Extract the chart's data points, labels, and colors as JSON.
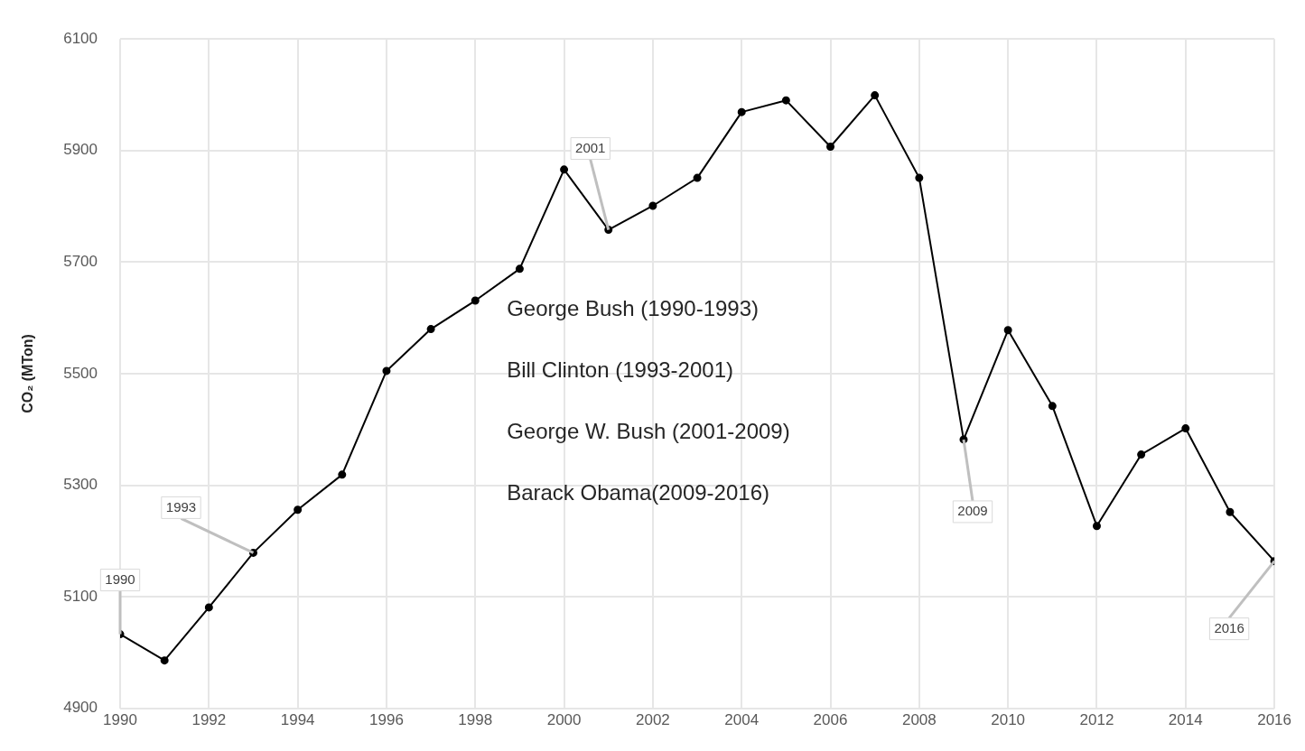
{
  "chart_data": {
    "type": "line",
    "ylabel": "CO₂ (MTon)",
    "x": [
      1990,
      1991,
      1992,
      1993,
      1994,
      1995,
      1996,
      1997,
      1998,
      1999,
      2000,
      2001,
      2002,
      2003,
      2004,
      2005,
      2006,
      2007,
      2008,
      2009,
      2010,
      2011,
      2012,
      2013,
      2014,
      2015,
      2016
    ],
    "series": [
      {
        "color": "#000000",
        "values": [
          5033,
          4986,
          5081,
          5179,
          5256,
          5319,
          5505,
          5580,
          5631,
          5688,
          5866,
          5758,
          5801,
          5851,
          5969,
          5990,
          5907,
          5999,
          5851,
          5382,
          5578,
          5442,
          5227,
          5355,
          5402,
          5252,
          5164
        ]
      }
    ],
    "xlim": [
      1990,
      2016
    ],
    "xticks": [
      1990,
      1992,
      1994,
      1996,
      1998,
      2000,
      2002,
      2004,
      2006,
      2008,
      2010,
      2012,
      2014,
      2016
    ],
    "ylim": [
      4900,
      6100
    ],
    "yticks": [
      4900,
      5100,
      5300,
      5500,
      5700,
      5900,
      6100
    ],
    "grid": true,
    "marker": "circle",
    "line_style": "solid",
    "legend": false,
    "annotations": [
      {
        "text": "1990",
        "x": 1990,
        "y": 5033
      },
      {
        "text": "1993",
        "x": 1993,
        "y": 5179
      },
      {
        "text": "2001",
        "x": 2001,
        "y": 5758
      },
      {
        "text": "2009",
        "x": 2009,
        "y": 5382
      },
      {
        "text": "2016",
        "x": 2016,
        "y": 5164
      },
      "George Bush (1990-1993)",
      "Bill Clinton (1993-2001)",
      "George W. Bush (2001-2009)",
      "Barack Obama(2009-2016)"
    ]
  }
}
